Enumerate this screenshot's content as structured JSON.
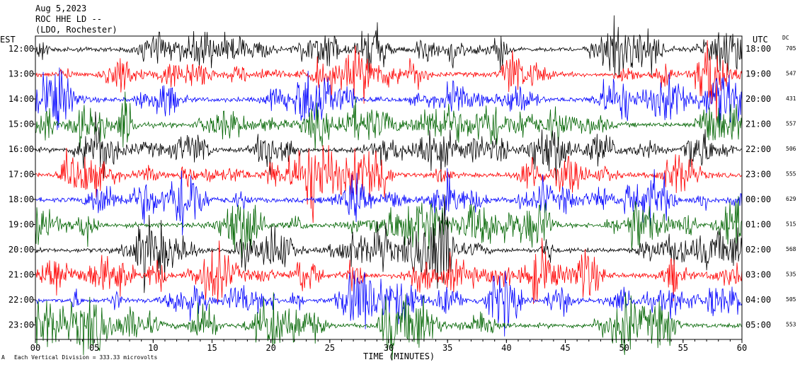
{
  "header": {
    "date": "Aug 5,2023",
    "station": "ROC HHE LD --",
    "location": "(LDO, Rochester)"
  },
  "chart_data": {
    "type": "line",
    "description_units": "minutes",
    "left_label": "EST",
    "right_label": "UTC",
    "dc_label": "DC",
    "xlabel": "TIME (MINUTES)",
    "xlim": [
      0,
      60
    ],
    "x_ticks": [
      "00",
      "05",
      "10",
      "15",
      "20",
      "25",
      "30",
      "35",
      "40",
      "45",
      "50",
      "55",
      "60"
    ],
    "rows": [
      {
        "est": "12:00",
        "utc": "18:00",
        "dc": "705",
        "color": "#000000"
      },
      {
        "est": "13:00",
        "utc": "19:00",
        "dc": "547",
        "color": "#ff0000"
      },
      {
        "est": "14:00",
        "utc": "20:00",
        "dc": "431",
        "color": "#0000ff"
      },
      {
        "est": "15:00",
        "utc": "21:00",
        "dc": "557",
        "color": "#006400"
      },
      {
        "est": "16:00",
        "utc": "22:00",
        "dc": "506",
        "color": "#000000"
      },
      {
        "est": "17:00",
        "utc": "23:00",
        "dc": "555",
        "color": "#ff0000"
      },
      {
        "est": "18:00",
        "utc": "00:00",
        "dc": "629",
        "color": "#0000ff"
      },
      {
        "est": "19:00",
        "utc": "01:00",
        "dc": "515",
        "color": "#006400"
      },
      {
        "est": "20:00",
        "utc": "02:00",
        "dc": "568",
        "color": "#000000"
      },
      {
        "est": "21:00",
        "utc": "03:00",
        "dc": "535",
        "color": "#ff0000"
      },
      {
        "est": "22:00",
        "utc": "04:00",
        "dc": "505",
        "color": "#0000ff"
      },
      {
        "est": "23:00",
        "utc": "05:00",
        "dc": "553",
        "color": "#006400"
      }
    ],
    "footnote": "Each Vertical Division =  333.33 microvolts"
  }
}
